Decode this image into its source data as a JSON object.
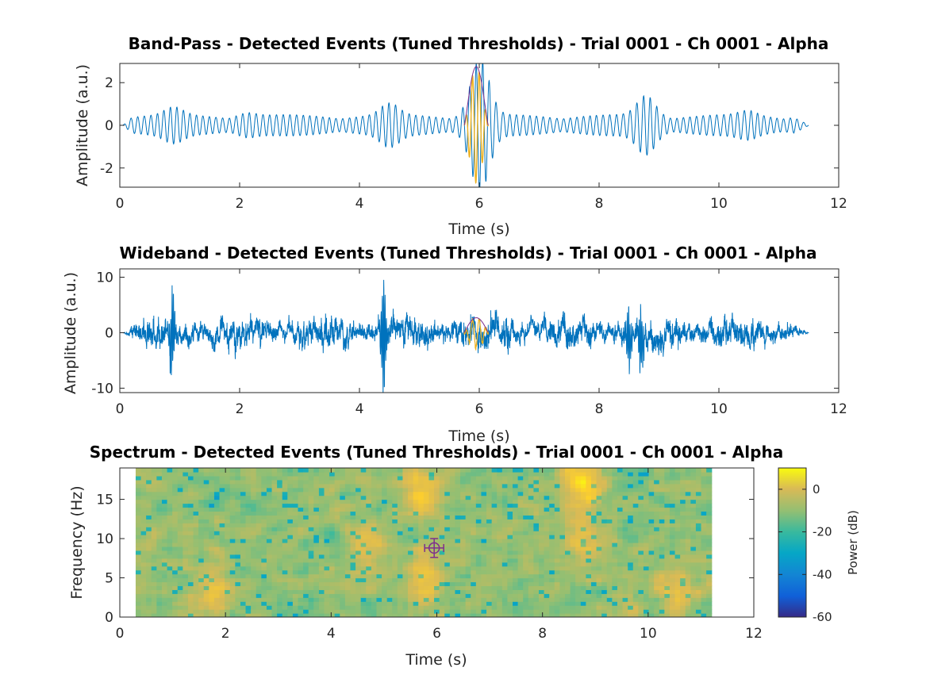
{
  "colors": {
    "signal": "#0072BD",
    "event": "#EDB120",
    "envelope": "#7E2F8E",
    "marker": "#7E2F8E"
  },
  "colormap": "parula",
  "chart_data": [
    {
      "type": "line",
      "title": "Band-Pass - Detected Events (Tuned Thresholds) - Trial 0001 - Ch 0001 - Alpha",
      "xlabel": "Time (s)",
      "ylabel": "Amplitude (a.u.)",
      "xlim": [
        0,
        12
      ],
      "ylim": [
        -2.9,
        2.9
      ],
      "xticks": [
        0,
        2,
        4,
        6,
        8,
        10,
        12
      ],
      "yticks": [
        -2,
        0,
        2
      ],
      "grid": false,
      "signal": {
        "t_start": 0.05,
        "t_end": 11.5,
        "carrier_hz": 9,
        "typical_amplitude": 0.4,
        "bursts": [
          {
            "t": 0.9,
            "amplitude": 0.7
          },
          {
            "t": 2.1,
            "amplitude": 0.6
          },
          {
            "t": 4.5,
            "amplitude": 0.85
          },
          {
            "t": 6.0,
            "amplitude": 2.8
          },
          {
            "t": 8.8,
            "amplitude": 1.3
          },
          {
            "t": 10.5,
            "amplitude": 0.6
          }
        ]
      },
      "events": [
        {
          "t_start": 5.75,
          "t_end": 6.15,
          "peak_amplitude": 2.7
        }
      ]
    },
    {
      "type": "line",
      "title": "Wideband - Detected Events (Tuned Thresholds) - Trial 0001 - Ch 0001 - Alpha",
      "xlabel": "Time (s)",
      "ylabel": "Amplitude (a.u.)",
      "xlim": [
        0,
        12
      ],
      "ylim": [
        -10.8,
        11.5
      ],
      "xticks": [
        0,
        2,
        4,
        6,
        8,
        10,
        12
      ],
      "yticks": [
        -10,
        0,
        10
      ],
      "grid": false,
      "signal": {
        "t_start": 0.05,
        "t_end": 11.5,
        "typical_amplitude": 2,
        "spikes": [
          {
            "t": 0.87,
            "amplitude": 7.5
          },
          {
            "t": 4.4,
            "amplitude": 11
          },
          {
            "t": 8.5,
            "amplitude": 6
          },
          {
            "t": 8.7,
            "amplitude": 6.5
          }
        ]
      },
      "events": [
        {
          "t_start": 5.75,
          "t_end": 6.15,
          "peak_amplitude": 2.7
        }
      ]
    },
    {
      "type": "heatmap",
      "title": "Spectrum - Detected Events (Tuned Thresholds) - Trial 0001 - Ch 0001 - Alpha",
      "xlabel": "Time (s)",
      "ylabel": "Frequency (Hz)",
      "xlim": [
        0,
        12
      ],
      "ylim": [
        0,
        19
      ],
      "xticks": [
        0,
        2,
        4,
        6,
        8,
        10,
        12
      ],
      "yticks": [
        0,
        5,
        10,
        15
      ],
      "data_extent": {
        "t": [
          0.3,
          11.2
        ],
        "f": [
          0,
          19
        ]
      },
      "colorbar": {
        "label": "Power (dB)",
        "range": [
          -60,
          10
        ],
        "ticks": [
          -60,
          -40,
          -20,
          0
        ]
      },
      "hotspots": [
        {
          "t": 1.7,
          "f": 3,
          "dB": -2
        },
        {
          "t": 5.65,
          "f": 16,
          "dB": 0
        },
        {
          "t": 5.8,
          "f": 5,
          "dB": 0
        },
        {
          "t": 8.75,
          "f": 17,
          "dB": 5
        },
        {
          "t": 8.75,
          "f": 10,
          "dB": 0
        },
        {
          "t": 10.5,
          "f": 3,
          "dB": -4
        },
        {
          "t": 4.7,
          "f": 9,
          "dB": -4
        }
      ],
      "event_marker": {
        "t": 5.95,
        "f": 8.8,
        "t_err": 0.18,
        "f_err": 1.2
      }
    }
  ]
}
